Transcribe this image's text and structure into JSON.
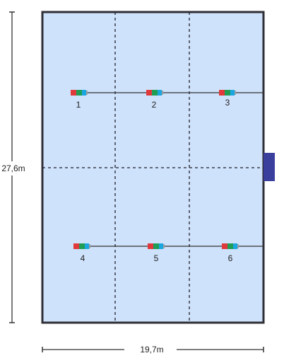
{
  "dimensions": {
    "height_label": "27,6m",
    "width_label": "19,7m"
  },
  "colors": {
    "floor": "#cfe2fb",
    "border": "#2e2e36",
    "grid_line": "#1f1f2a",
    "wire": "#333333",
    "door": "#3a3f9e",
    "led_red": "#e0393b",
    "led_green": "#1f9d55",
    "led_blue": "#1aa7e0",
    "led_cap": "#9aa0a6"
  },
  "fixtures": [
    {
      "label": "1"
    },
    {
      "label": "2"
    },
    {
      "label": "3"
    },
    {
      "label": "4"
    },
    {
      "label": "5"
    },
    {
      "label": "6"
    }
  ]
}
